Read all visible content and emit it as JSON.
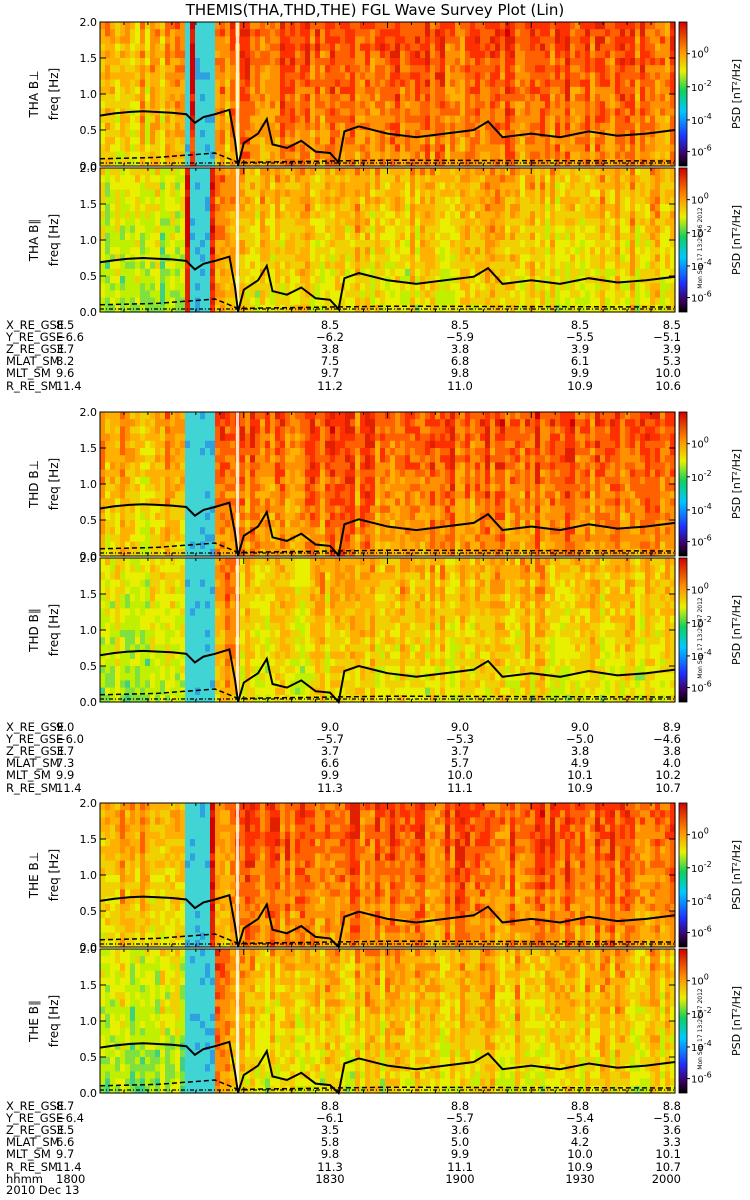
{
  "title": "THEMIS(THA,THD,THE) FGL Wave Survey Plot (Lin)",
  "chart_data": [
    {
      "type": "heatmap",
      "panel": "THA B⊥",
      "ylabel": "freq [Hz]",
      "ylim": [
        0,
        2.0
      ],
      "yticks": [
        "0.0",
        "0.5",
        "1.0",
        "1.5",
        "2.0"
      ],
      "colorbar": {
        "label": "PSD [nT²/Hz]",
        "ticks": [
          "10^0",
          "10^-2",
          "10^-4",
          "10^-6"
        ],
        "scale": "log"
      },
      "quiet_times": [
        "1830-1840",
        "1843"
      ],
      "gap_time": "1848",
      "solid_line": [
        [
          1800,
          0.7
        ],
        [
          1805,
          0.73
        ],
        [
          1810,
          0.75
        ],
        [
          1815,
          0.76
        ],
        [
          1820,
          0.75
        ],
        [
          1825,
          0.74
        ],
        [
          1830,
          0.72
        ],
        [
          1833,
          0.6
        ],
        [
          1836,
          0.68
        ],
        [
          1840,
          0.72
        ],
        [
          1845,
          0.78
        ],
        [
          1847,
          0.35
        ],
        [
          1848,
          0.0
        ],
        [
          1850,
          0.32
        ],
        [
          1855,
          0.45
        ],
        [
          1858,
          0.65
        ],
        [
          1860,
          0.3
        ],
        [
          1865,
          0.25
        ],
        [
          1870,
          0.35
        ],
        [
          1875,
          0.2
        ],
        [
          1880,
          0.18
        ],
        [
          1883,
          0.05
        ],
        [
          1885,
          0.48
        ],
        [
          1890,
          0.55
        ],
        [
          1900,
          0.45
        ],
        [
          1910,
          0.4
        ],
        [
          1920,
          0.45
        ],
        [
          1930,
          0.5
        ],
        [
          1935,
          0.62
        ],
        [
          1940,
          0.4
        ],
        [
          1950,
          0.45
        ],
        [
          1960,
          0.4
        ],
        [
          1970,
          0.48
        ],
        [
          1980,
          0.42
        ],
        [
          1990,
          0.45
        ],
        [
          2000,
          0.5
        ]
      ],
      "dashed_line": [
        [
          1800,
          0.1
        ],
        [
          1820,
          0.12
        ],
        [
          1840,
          0.18
        ],
        [
          1848,
          0.05
        ],
        [
          1900,
          0.08
        ],
        [
          2000,
          0.07
        ]
      ]
    },
    {
      "type": "heatmap",
      "panel": "THA B∥",
      "ylabel": "freq [Hz]",
      "ylim": [
        0,
        2.0
      ],
      "yticks": [
        "0.0",
        "0.5",
        "1.0",
        "1.5",
        "2.0"
      ],
      "colorbar": {
        "label": "PSD [nT²/Hz]",
        "ticks": [
          "10^0",
          "10^-2",
          "10^-4",
          "10^-6"
        ],
        "scale": "log"
      },
      "stamp": "Mon Sep 17 13:26:46 2012",
      "quiet_times": [
        "1830-1840"
      ],
      "gap_time": "1848"
    },
    {
      "type": "heatmap",
      "panel": "THD B⊥",
      "ylabel": "freq [Hz]",
      "ylim": [
        0,
        2.0
      ],
      "yticks": [
        "0.0",
        "0.5",
        "1.0",
        "1.5",
        "2.0"
      ],
      "colorbar": {
        "label": "PSD [nT²/Hz]",
        "ticks": [
          "10^0",
          "10^-2",
          "10^-4",
          "10^-6"
        ],
        "scale": "log"
      },
      "quiet_times": [
        "1830-1840"
      ],
      "gap_time": "1848"
    },
    {
      "type": "heatmap",
      "panel": "THD B∥",
      "ylabel": "freq [Hz]",
      "ylim": [
        0,
        2.0
      ],
      "yticks": [
        "0.0",
        "0.5",
        "1.0",
        "1.5",
        "2.0"
      ],
      "colorbar": {
        "label": "PSD [nT²/Hz]",
        "ticks": [
          "10^0",
          "10^-2",
          "10^-4",
          "10^-6"
        ],
        "scale": "log"
      },
      "stamp": "Mon Sep 17 13:26:47 2012",
      "quiet_times": [
        "1830-1840"
      ],
      "gap_time": "1848"
    },
    {
      "type": "heatmap",
      "panel": "THE B⊥",
      "ylabel": "freq [Hz]",
      "ylim": [
        0,
        2.0
      ],
      "yticks": [
        "0.0",
        "0.5",
        "1.0",
        "1.5",
        "2.0"
      ],
      "colorbar": {
        "label": "PSD [nT²/Hz]",
        "ticks": [
          "10^0",
          "10^-2",
          "10^-4",
          "10^-6"
        ],
        "scale": "log"
      },
      "quiet_times": [
        "1830-1840"
      ],
      "gap_time": "1848"
    },
    {
      "type": "heatmap",
      "panel": "THE B∥",
      "ylabel": "freq [Hz]",
      "ylim": [
        0,
        2.0
      ],
      "yticks": [
        "0.0",
        "0.5",
        "1.0",
        "1.5",
        "2.0"
      ],
      "colorbar": {
        "label": "PSD [nT²/Hz]",
        "ticks": [
          "10^0",
          "10^-2",
          "10^-4",
          "10^-6"
        ],
        "scale": "log"
      },
      "stamp": "Mon Sep 17 13:26:47 2012",
      "quiet_times": [
        "1830-1840"
      ],
      "gap_time": "1848"
    }
  ],
  "ephemeris": [
    {
      "rows": [
        [
          "X_RE_GSE",
          "8.5",
          "8.5",
          "8.5",
          "8.5",
          "8.5"
        ],
        [
          "Y_RE_GSE",
          "−6.6",
          "−6.2",
          "−5.9",
          "−5.5",
          "−5.1"
        ],
        [
          "Z_RE_GSE",
          "3.7",
          "3.8",
          "3.8",
          "3.9",
          "3.9"
        ],
        [
          "MLAT_SM",
          "8.2",
          "7.5",
          "6.8",
          "6.1",
          "5.3"
        ],
        [
          "MLT_SM",
          "9.6",
          "9.7",
          "9.8",
          "9.9",
          "10.0"
        ],
        [
          "R_RE_SM",
          "11.4",
          "11.2",
          "11.0",
          "10.9",
          "10.6"
        ]
      ]
    },
    {
      "rows": [
        [
          "X_RE_GSE",
          "9.0",
          "9.0",
          "9.0",
          "9.0",
          "8.9"
        ],
        [
          "Y_RE_GSE",
          "−6.0",
          "−5.7",
          "−5.3",
          "−5.0",
          "−4.6"
        ],
        [
          "Z_RE_GSE",
          "3.7",
          "3.7",
          "3.7",
          "3.8",
          "3.8"
        ],
        [
          "MLAT_SM",
          "7.3",
          "6.6",
          "5.7",
          "4.9",
          "4.0"
        ],
        [
          "MLT_SM",
          "9.9",
          "9.9",
          "10.0",
          "10.1",
          "10.2"
        ],
        [
          "R_RE_SM",
          "11.4",
          "11.3",
          "11.1",
          "10.9",
          "10.7"
        ]
      ]
    },
    {
      "rows": [
        [
          "X_RE_GSE",
          "8.7",
          "8.8",
          "8.8",
          "8.8",
          "8.8"
        ],
        [
          "Y_RE_GSE",
          "−6.4",
          "−6.1",
          "−5.7",
          "−5.4",
          "−5.0"
        ],
        [
          "Z_RE_GSE",
          "3.5",
          "3.5",
          "3.6",
          "3.6",
          "3.6"
        ],
        [
          "MLAT_SM",
          "6.6",
          "5.8",
          "5.0",
          "4.2",
          "3.3"
        ],
        [
          "MLT_SM",
          "9.7",
          "9.8",
          "9.9",
          "10.0",
          "10.1"
        ],
        [
          "R_RE_SM",
          "11.4",
          "11.3",
          "11.1",
          "10.9",
          "10.7"
        ],
        [
          "hhmm",
          "1800",
          "1830",
          "1900",
          "1930",
          "2000"
        ]
      ]
    }
  ],
  "date": "2010 Dec 13",
  "colors": {
    "quiet_block": "#40d4d4",
    "axis": "#000000"
  }
}
